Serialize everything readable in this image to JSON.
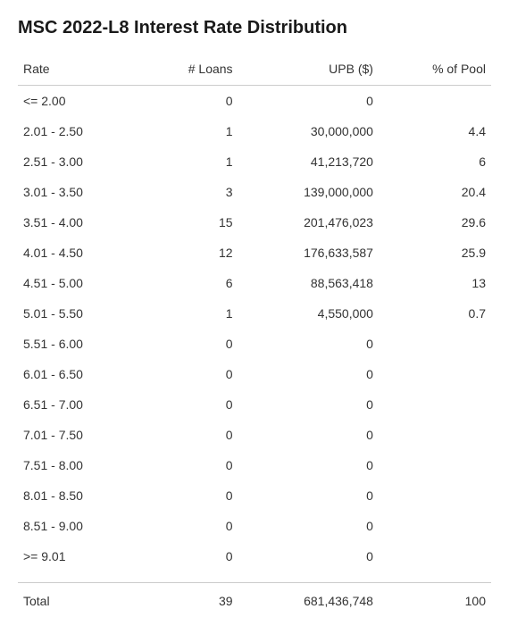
{
  "title": "MSC 2022-L8 Interest Rate Distribution",
  "table": {
    "type": "table",
    "columns": [
      "Rate",
      "# Loans",
      "UPB ($)",
      "% of Pool"
    ],
    "rows": [
      {
        "rate": "<= 2.00",
        "loans": "0",
        "upb": "0",
        "pct": ""
      },
      {
        "rate": "2.01 - 2.50",
        "loans": "1",
        "upb": "30,000,000",
        "pct": "4.4"
      },
      {
        "rate": "2.51 - 3.00",
        "loans": "1",
        "upb": "41,213,720",
        "pct": "6"
      },
      {
        "rate": "3.01 - 3.50",
        "loans": "3",
        "upb": "139,000,000",
        "pct": "20.4"
      },
      {
        "rate": "3.51 - 4.00",
        "loans": "15",
        "upb": "201,476,023",
        "pct": "29.6"
      },
      {
        "rate": "4.01 - 4.50",
        "loans": "12",
        "upb": "176,633,587",
        "pct": "25.9"
      },
      {
        "rate": "4.51 - 5.00",
        "loans": "6",
        "upb": "88,563,418",
        "pct": "13"
      },
      {
        "rate": "5.01 - 5.50",
        "loans": "1",
        "upb": "4,550,000",
        "pct": "0.7"
      },
      {
        "rate": "5.51 - 6.00",
        "loans": "0",
        "upb": "0",
        "pct": ""
      },
      {
        "rate": "6.01 - 6.50",
        "loans": "0",
        "upb": "0",
        "pct": ""
      },
      {
        "rate": "6.51 - 7.00",
        "loans": "0",
        "upb": "0",
        "pct": ""
      },
      {
        "rate": "7.01 - 7.50",
        "loans": "0",
        "upb": "0",
        "pct": ""
      },
      {
        "rate": "7.51 - 8.00",
        "loans": "0",
        "upb": "0",
        "pct": ""
      },
      {
        "rate": "8.01 - 8.50",
        "loans": "0",
        "upb": "0",
        "pct": ""
      },
      {
        "rate": "8.51 - 9.00",
        "loans": "0",
        "upb": "0",
        "pct": ""
      },
      {
        "rate": ">= 9.01",
        "loans": "0",
        "upb": "0",
        "pct": ""
      }
    ],
    "total": {
      "label": "Total",
      "loans": "39",
      "upb": "681,436,748",
      "pct": "100"
    },
    "colors": {
      "text": "#333333",
      "heading": "#1a1a1a",
      "border": "#cccccc",
      "background": "#ffffff"
    },
    "fontsize": {
      "title": 20,
      "body": 14
    },
    "alignment": [
      "left",
      "right",
      "right",
      "right"
    ]
  }
}
